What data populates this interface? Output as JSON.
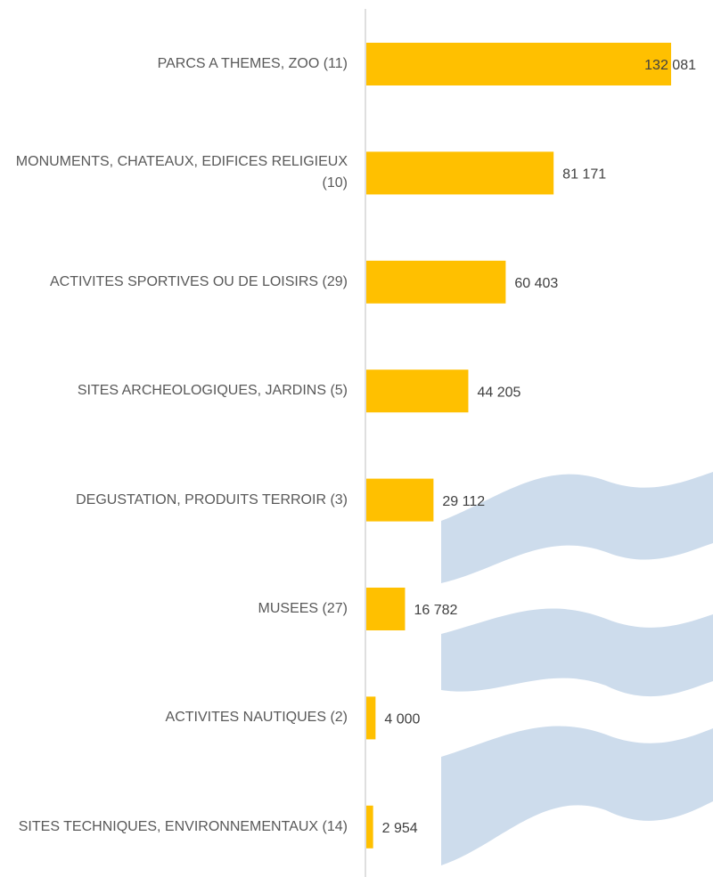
{
  "chart_data": {
    "type": "bar",
    "orientation": "horizontal",
    "categories": [
      "PARCS A THEMES, ZOO (11)",
      "MONUMENTS, CHATEAUX, EDIFICES RELIGIEUX (10)",
      "ACTIVITES SPORTIVES OU DE LOISIRS (29)",
      "SITES ARCHEOLOGIQUES, JARDINS (5)",
      "DEGUSTATION, PRODUITS TERROIR (3)",
      "MUSEES (27)",
      "ACTIVITES NAUTIQUES (2)",
      "SITES TECHNIQUES, ENVIRONNEMENTAUX (14)"
    ],
    "values": [
      132081,
      81171,
      60403,
      44205,
      29112,
      16782,
      4000,
      2954
    ],
    "value_labels": [
      "132 081",
      "81 171",
      "60 403",
      "44 205",
      "29 112",
      "16 782",
      "4 000",
      "2 954"
    ],
    "color": "#ffc000"
  }
}
